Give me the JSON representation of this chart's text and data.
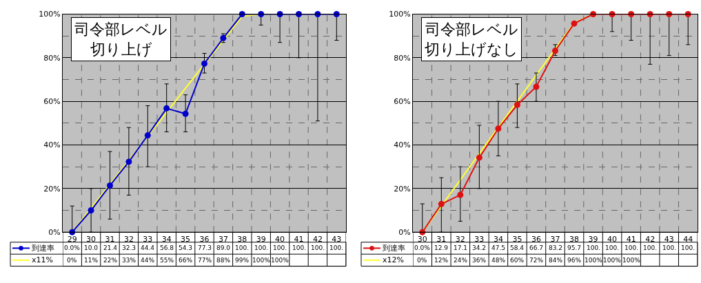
{
  "chart_data": [
    {
      "type": "line",
      "annotations": [
        "司令部レベル切り上げ"
      ],
      "categories": [
        "29",
        "30",
        "31",
        "32",
        "33",
        "34",
        "35",
        "36",
        "37",
        "38",
        "39",
        "40",
        "41",
        "42",
        "43"
      ],
      "ylim": [
        0,
        100
      ],
      "yticks": [
        {
          "value": 0,
          "label": "0%"
        },
        {
          "value": 20,
          "label": "20%"
        },
        {
          "value": 40,
          "label": "40%"
        },
        {
          "value": 60,
          "label": "60%"
        },
        {
          "value": 80,
          "label": "80%"
        },
        {
          "value": 100,
          "label": "100%"
        }
      ],
      "grid": true,
      "legend": "bottom",
      "marker": "circle",
      "series": [
        {
          "name": "x11%",
          "color": "#ffff33",
          "marker": "none",
          "values": [
            0,
            11,
            22,
            33,
            44,
            55,
            66,
            77,
            88,
            99,
            100,
            100,
            null,
            null,
            null
          ],
          "value_labels": [
            "0%",
            "11%",
            "22%",
            "33%",
            "44%",
            "55%",
            "66%",
            "77%",
            "88%",
            "99%",
            "100%",
            "100%",
            null,
            null,
            null
          ]
        },
        {
          "name": "到達率",
          "color": "#0000cc",
          "values": [
            0.0,
            10.0,
            21.4,
            32.3,
            44.4,
            56.8,
            54.3,
            77.3,
            89.0,
            100,
            100,
            100,
            100,
            100,
            100
          ],
          "value_labels": [
            "0.0%",
            "10.0",
            "21.4",
            "32.3",
            "44.4",
            "56.8",
            "54.3",
            "77.3",
            "89.0",
            "100.",
            "100.",
            "100.",
            "100.",
            "100.",
            "100."
          ],
          "errors": [
            [
              0,
              12
            ],
            [
              0,
              20
            ],
            [
              6,
              37
            ],
            [
              17,
              48
            ],
            [
              30,
              58
            ],
            [
              46,
              68
            ],
            [
              46,
              63
            ],
            [
              73,
              82
            ],
            [
              87,
              91
            ],
            null,
            [
              95,
              100
            ],
            [
              87,
              100
            ],
            [
              80,
              100
            ],
            [
              51,
              100
            ],
            [
              88,
              100
            ]
          ]
        }
      ]
    },
    {
      "type": "line",
      "annotations": [
        "司令部レベル切り上げなし"
      ],
      "categories": [
        "30",
        "31",
        "32",
        "33",
        "34",
        "35",
        "36",
        "37",
        "38",
        "39",
        "40",
        "41",
        "42",
        "43",
        "44"
      ],
      "ylim": [
        0,
        100
      ],
      "yticks": [
        {
          "value": 0,
          "label": "0%"
        },
        {
          "value": 20,
          "label": "20%"
        },
        {
          "value": 40,
          "label": "40%"
        },
        {
          "value": 60,
          "label": "60%"
        },
        {
          "value": 80,
          "label": "80%"
        },
        {
          "value": 100,
          "label": "100%"
        }
      ],
      "grid": true,
      "legend": "bottom",
      "marker": "circle",
      "series": [
        {
          "name": "x12%",
          "color": "#ffff33",
          "marker": "none",
          "values": [
            0,
            12,
            24,
            36,
            48,
            60,
            72,
            84,
            96,
            100,
            null,
            null,
            null,
            null,
            null
          ],
          "value_labels": [
            "0%",
            "12%",
            "24%",
            "36%",
            "48%",
            "60%",
            "72%",
            "84%",
            "96%",
            "100%",
            "100%",
            "100%",
            null,
            null,
            null
          ]
        },
        {
          "name": "到達率",
          "color": "#dd1111",
          "values": [
            0.0,
            12.9,
            17.1,
            34.2,
            47.5,
            58.4,
            66.7,
            83.2,
            95.7,
            100,
            100,
            100,
            100,
            100,
            100
          ],
          "value_labels": [
            "0.0%",
            "12.9",
            "17.1",
            "34.2",
            "47.5",
            "58.4",
            "66.7",
            "83.2",
            "95.7",
            "100.",
            "100.",
            "100.",
            "100.",
            "100.",
            "100."
          ],
          "errors": [
            [
              0,
              13
            ],
            [
              0,
              25
            ],
            [
              5,
              30
            ],
            [
              20,
              49
            ],
            [
              35,
              60
            ],
            [
              48,
              68
            ],
            [
              60,
              73
            ],
            [
              81,
              86
            ],
            null,
            null,
            [
              92,
              100
            ],
            [
              88,
              100
            ],
            [
              77,
              100
            ],
            [
              81,
              100
            ],
            [
              86,
              100
            ]
          ]
        }
      ]
    }
  ]
}
